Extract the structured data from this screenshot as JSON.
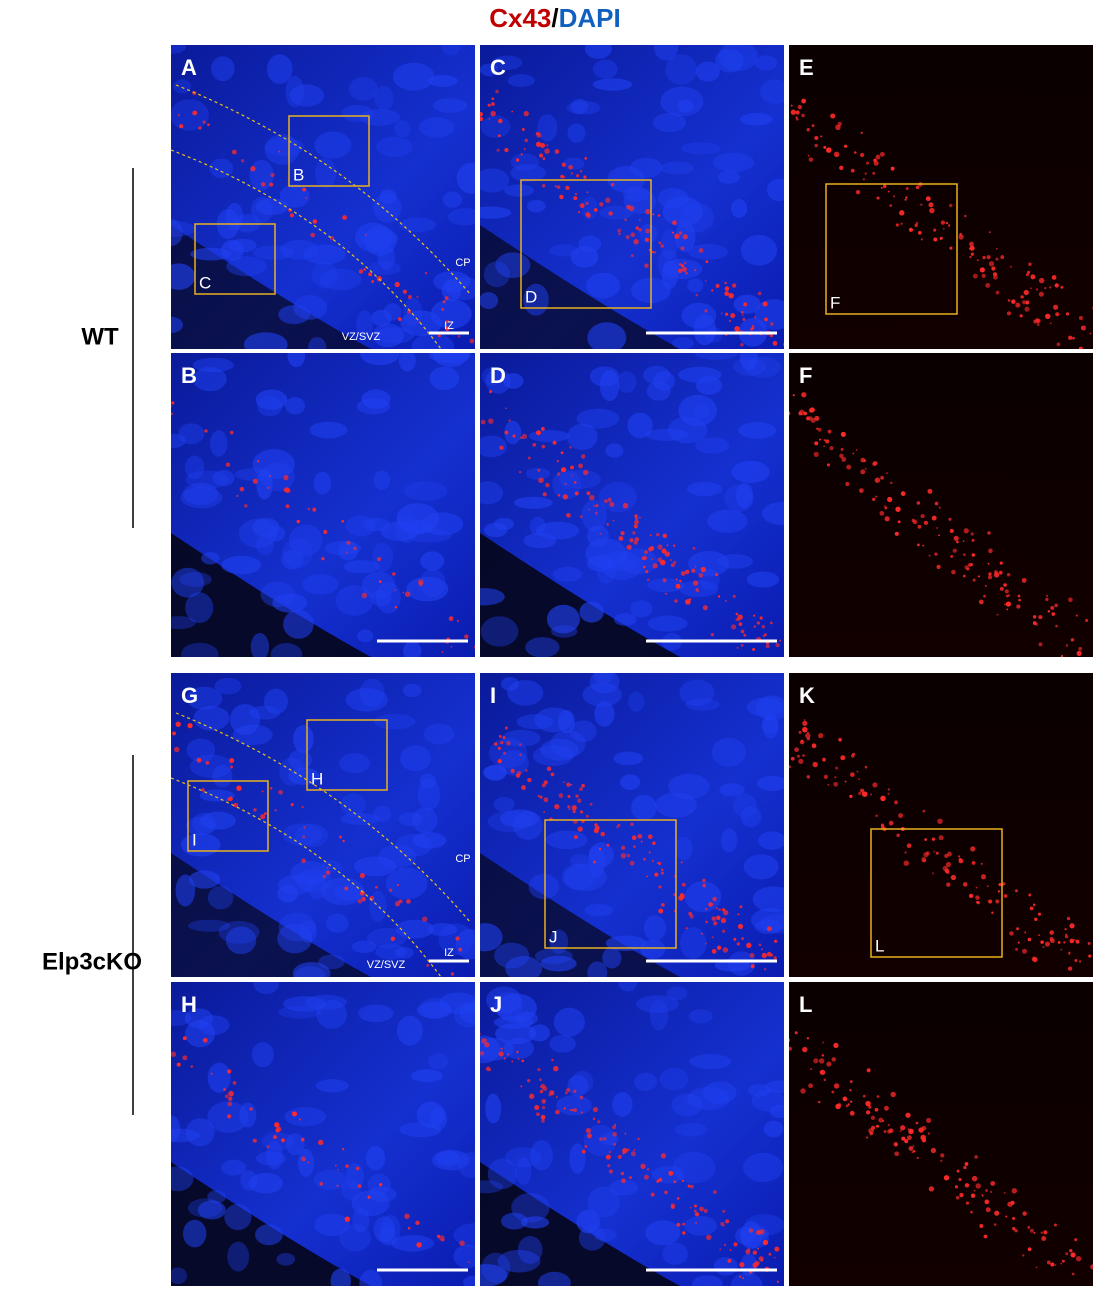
{
  "title": {
    "cx43": "Cx43",
    "slash": "/",
    "dapi": "DAPI"
  },
  "rows": [
    {
      "label": "WT"
    },
    {
      "label": "Elp3cKO"
    }
  ],
  "panels": [
    {
      "letter": "A",
      "insets": [
        "B",
        "C"
      ],
      "zones": [
        "CP",
        "IZ",
        "VZ/SVZ"
      ]
    },
    {
      "letter": "C",
      "insets": [
        "D"
      ]
    },
    {
      "letter": "E",
      "insets": [
        "F"
      ]
    },
    {
      "letter": "B"
    },
    {
      "letter": "D"
    },
    {
      "letter": "F"
    },
    {
      "letter": "G",
      "insets": [
        "H",
        "I"
      ],
      "zones": [
        "CP",
        "IZ",
        "VZ/SVZ"
      ]
    },
    {
      "letter": "I",
      "insets": [
        "J"
      ]
    },
    {
      "letter": "K",
      "insets": [
        "L"
      ]
    },
    {
      "letter": "H"
    },
    {
      "letter": "J"
    },
    {
      "letter": "L"
    }
  ]
}
